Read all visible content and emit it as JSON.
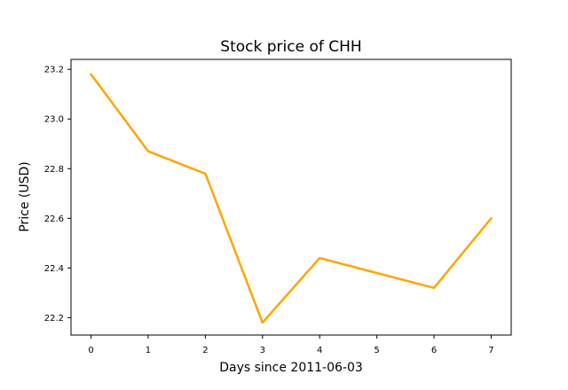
{
  "chart_data": {
    "type": "line",
    "title": "Stock price of CHH",
    "xlabel": "Days since 2011-06-03",
    "ylabel": "Price (USD)",
    "xlim": [
      -0.35,
      7.35
    ],
    "ylim": [
      22.13,
      23.24
    ],
    "x_ticks": [
      "0",
      "1",
      "2",
      "3",
      "4",
      "5",
      "6",
      "7"
    ],
    "y_ticks": [
      "22.2",
      "22.4",
      "22.6",
      "22.8",
      "23.0",
      "23.2"
    ],
    "grid": false,
    "series": [
      {
        "color": "#ffa500",
        "x": [
          0,
          1,
          2,
          3,
          4,
          5,
          6,
          7
        ],
        "y": [
          23.18,
          22.87,
          22.78,
          22.18,
          22.44,
          22.38,
          22.32,
          22.6
        ]
      }
    ]
  }
}
